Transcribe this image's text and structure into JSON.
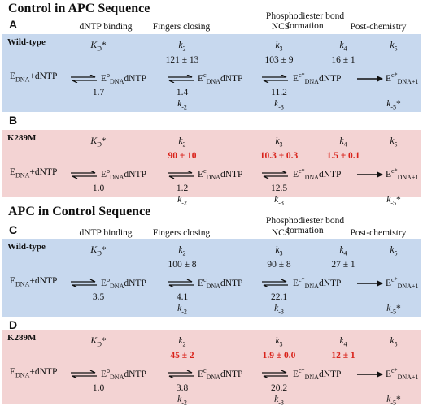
{
  "sections": [
    {
      "title": "Control in APC Sequence",
      "stages": [
        "dNTP binding",
        "Fingers closing",
        "NCS",
        "Phosphodiester bond formation",
        "Post-chemistry"
      ],
      "panels": [
        {
          "letter": "A",
          "enzyme": "Wild-type",
          "color": "#c7d8ee",
          "kd": "1.7",
          "k2": "121 ± 13",
          "km2": "1.4",
          "k3": "103 ± 9",
          "km3": "11.2",
          "k4": "16 ± 1",
          "red": false
        },
        {
          "letter": "B",
          "enzyme": "K289M",
          "color": "#f3d3d3",
          "kd": "1.0",
          "k2": "90 ± 10",
          "km2": "1.2",
          "k3": "10.3 ± 0.3",
          "km3": "12.5",
          "k4": "1.5 ± 0.1",
          "red": true
        }
      ]
    },
    {
      "title": "APC in Control Sequence",
      "stages": [
        "dNTP binding",
        "Fingers closing",
        "NCS",
        "Phosphodiester bond formation",
        "Post-chemistry"
      ],
      "panels": [
        {
          "letter": "C",
          "enzyme": "Wild-type",
          "color": "#c7d8ee",
          "kd": "3.5",
          "k2": "100 ± 8",
          "km2": "4.1",
          "k3": "90 ± 8",
          "km3": "22.1",
          "k4": "27 ± 1",
          "red": false
        },
        {
          "letter": "D",
          "enzyme": "K289M",
          "color": "#f3d3d3",
          "kd": "1.0",
          "k2": "45 ± 2",
          "km2": "3.8",
          "k3": "1.9 ± 0.0",
          "km3": "20.2",
          "k4": "12 ± 1",
          "red": true
        }
      ]
    }
  ]
}
